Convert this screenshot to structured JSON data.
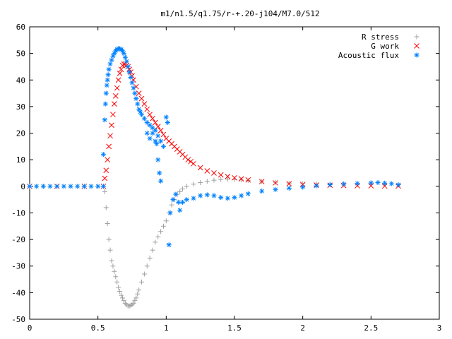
{
  "chart_data": {
    "type": "scatter",
    "title": "m1/n1.5/q1.75/r-+.20-j104/M7.0/512",
    "xlabel": "",
    "ylabel": "",
    "xlim": [
      0,
      3
    ],
    "ylim": [
      -50,
      60
    ],
    "xticks": [
      0,
      0.5,
      1,
      1.5,
      2,
      2.5,
      3
    ],
    "yticks": [
      -50,
      -40,
      -30,
      -20,
      -10,
      0,
      10,
      20,
      30,
      40,
      50,
      60
    ],
    "xtick_labels": [
      "0",
      "0.5",
      "1",
      "1.5",
      "2",
      "2.5",
      "3"
    ],
    "ytick_labels": [
      "-50",
      "-40",
      "-30",
      "-20",
      "-10",
      "0",
      "10",
      "20",
      "30",
      "40",
      "50",
      "60"
    ],
    "grid": false,
    "legend_position": "top-right",
    "series": [
      {
        "name": "R stress",
        "marker": "plus",
        "color": "#a0a0a0",
        "points": [
          [
            0.0,
            0.0
          ],
          [
            0.1,
            0.0
          ],
          [
            0.2,
            0.0
          ],
          [
            0.3,
            0.0
          ],
          [
            0.4,
            0.0
          ],
          [
            0.5,
            0.0
          ],
          [
            0.54,
            0.0
          ],
          [
            0.55,
            -2
          ],
          [
            0.56,
            -8
          ],
          [
            0.57,
            -14
          ],
          [
            0.58,
            -20
          ],
          [
            0.59,
            -24
          ],
          [
            0.6,
            -28
          ],
          [
            0.61,
            -30
          ],
          [
            0.62,
            -32
          ],
          [
            0.63,
            -34
          ],
          [
            0.64,
            -36
          ],
          [
            0.65,
            -38
          ],
          [
            0.66,
            -39.5
          ],
          [
            0.67,
            -41
          ],
          [
            0.68,
            -42
          ],
          [
            0.69,
            -43
          ],
          [
            0.7,
            -44
          ],
          [
            0.71,
            -44.5
          ],
          [
            0.72,
            -45
          ],
          [
            0.73,
            -45
          ],
          [
            0.74,
            -44.8
          ],
          [
            0.75,
            -44.5
          ],
          [
            0.76,
            -44
          ],
          [
            0.77,
            -43
          ],
          [
            0.78,
            -42
          ],
          [
            0.79,
            -40.5
          ],
          [
            0.8,
            -39
          ],
          [
            0.82,
            -36
          ],
          [
            0.84,
            -33
          ],
          [
            0.86,
            -30
          ],
          [
            0.88,
            -27
          ],
          [
            0.9,
            -24
          ],
          [
            0.92,
            -21
          ],
          [
            0.94,
            -19
          ],
          [
            0.96,
            -17
          ],
          [
            0.98,
            -15
          ],
          [
            1.0,
            -13
          ],
          [
            1.02,
            -10
          ],
          [
            1.04,
            -7
          ],
          [
            1.06,
            -5
          ],
          [
            1.08,
            -3
          ],
          [
            1.1,
            -2
          ],
          [
            1.12,
            -1
          ],
          [
            1.15,
            0
          ],
          [
            1.2,
            0.8
          ],
          [
            1.25,
            1.4
          ],
          [
            1.3,
            1.9
          ],
          [
            1.35,
            2.3
          ],
          [
            1.4,
            2.6
          ],
          [
            1.45,
            2.7
          ],
          [
            1.5,
            2.6
          ],
          [
            1.55,
            2.4
          ],
          [
            1.6,
            2.2
          ],
          [
            1.7,
            1.8
          ],
          [
            1.8,
            1.5
          ],
          [
            1.9,
            1.2
          ],
          [
            2.0,
            1.0
          ],
          [
            2.1,
            0.9
          ],
          [
            2.2,
            0.8
          ],
          [
            2.3,
            0.8
          ],
          [
            2.4,
            0.8
          ],
          [
            2.5,
            0.8
          ],
          [
            2.6,
            0.7
          ],
          [
            2.7,
            0.6
          ]
        ]
      },
      {
        "name": "G work",
        "marker": "cross",
        "color": "#ff0000",
        "points": [
          [
            0.0,
            0.0
          ],
          [
            0.2,
            0.0
          ],
          [
            0.4,
            0.0
          ],
          [
            0.54,
            0.0
          ],
          [
            0.55,
            3
          ],
          [
            0.56,
            6
          ],
          [
            0.57,
            10
          ],
          [
            0.58,
            15
          ],
          [
            0.59,
            19
          ],
          [
            0.6,
            23
          ],
          [
            0.61,
            27
          ],
          [
            0.62,
            31
          ],
          [
            0.63,
            34
          ],
          [
            0.64,
            37
          ],
          [
            0.65,
            40
          ],
          [
            0.66,
            42.5
          ],
          [
            0.67,
            44
          ],
          [
            0.68,
            45.5
          ],
          [
            0.69,
            46
          ],
          [
            0.7,
            46
          ],
          [
            0.71,
            45.5
          ],
          [
            0.72,
            45
          ],
          [
            0.73,
            44
          ],
          [
            0.74,
            43
          ],
          [
            0.75,
            41.5
          ],
          [
            0.76,
            40
          ],
          [
            0.78,
            37.5
          ],
          [
            0.8,
            35
          ],
          [
            0.82,
            33
          ],
          [
            0.84,
            31
          ],
          [
            0.86,
            29
          ],
          [
            0.88,
            27
          ],
          [
            0.9,
            25.5
          ],
          [
            0.92,
            24
          ],
          [
            0.94,
            22.5
          ],
          [
            0.96,
            21
          ],
          [
            0.98,
            19.5
          ],
          [
            1.0,
            18
          ],
          [
            1.02,
            17
          ],
          [
            1.04,
            16
          ],
          [
            1.06,
            15
          ],
          [
            1.08,
            14
          ],
          [
            1.1,
            13
          ],
          [
            1.12,
            12
          ],
          [
            1.14,
            11
          ],
          [
            1.16,
            10
          ],
          [
            1.18,
            9.3
          ],
          [
            1.2,
            8.5
          ],
          [
            1.25,
            7
          ],
          [
            1.3,
            5.8
          ],
          [
            1.35,
            5
          ],
          [
            1.4,
            4.3
          ],
          [
            1.45,
            3.7
          ],
          [
            1.5,
            3.2
          ],
          [
            1.55,
            2.8
          ],
          [
            1.6,
            2.4
          ],
          [
            1.7,
            1.8
          ],
          [
            1.8,
            1.3
          ],
          [
            1.9,
            1.0
          ],
          [
            2.0,
            0.7
          ],
          [
            2.1,
            0.5
          ],
          [
            2.2,
            0.4
          ],
          [
            2.3,
            0.3
          ],
          [
            2.4,
            0.2
          ],
          [
            2.5,
            0.2
          ],
          [
            2.6,
            0.1
          ],
          [
            2.7,
            0.1
          ]
        ]
      },
      {
        "name": "Acoustic flux",
        "marker": "star",
        "color": "#0080ff",
        "points": [
          [
            0.0,
            0.0
          ],
          [
            0.05,
            0.0
          ],
          [
            0.1,
            0.0
          ],
          [
            0.15,
            0.0
          ],
          [
            0.2,
            0.0
          ],
          [
            0.25,
            0.0
          ],
          [
            0.3,
            0.0
          ],
          [
            0.35,
            0.0
          ],
          [
            0.4,
            0.0
          ],
          [
            0.45,
            0.0
          ],
          [
            0.5,
            0.0
          ],
          [
            0.54,
            0.0
          ],
          [
            0.54,
            12
          ],
          [
            0.55,
            25
          ],
          [
            0.555,
            31
          ],
          [
            0.56,
            35
          ],
          [
            0.565,
            38
          ],
          [
            0.57,
            40
          ],
          [
            0.575,
            42
          ],
          [
            0.58,
            44
          ],
          [
            0.59,
            46
          ],
          [
            0.6,
            47.5
          ],
          [
            0.61,
            49
          ],
          [
            0.62,
            50
          ],
          [
            0.63,
            51
          ],
          [
            0.64,
            51.5
          ],
          [
            0.65,
            51.8
          ],
          [
            0.66,
            51.8
          ],
          [
            0.67,
            51.5
          ],
          [
            0.68,
            51
          ],
          [
            0.69,
            50
          ],
          [
            0.7,
            48.5
          ],
          [
            0.71,
            47
          ],
          [
            0.72,
            45
          ],
          [
            0.73,
            43
          ],
          [
            0.74,
            41
          ],
          [
            0.75,
            39
          ],
          [
            0.76,
            37
          ],
          [
            0.77,
            35
          ],
          [
            0.78,
            33
          ],
          [
            0.79,
            31
          ],
          [
            0.8,
            29
          ],
          [
            0.81,
            28
          ],
          [
            0.82,
            27
          ],
          [
            0.84,
            25.5
          ],
          [
            0.86,
            24
          ],
          [
            0.88,
            23
          ],
          [
            0.9,
            22
          ],
          [
            0.92,
            21
          ],
          [
            0.94,
            19
          ],
          [
            0.96,
            17
          ],
          [
            0.98,
            15
          ],
          [
            0.86,
            20
          ],
          [
            0.88,
            18
          ],
          [
            0.9,
            20
          ],
          [
            0.92,
            17
          ],
          [
            0.93,
            16
          ],
          [
            0.94,
            10
          ],
          [
            0.95,
            5
          ],
          [
            0.96,
            2
          ],
          [
            1.0,
            26
          ],
          [
            1.01,
            24
          ],
          [
            1.02,
            -22
          ],
          [
            1.03,
            -10
          ],
          [
            1.05,
            -5
          ],
          [
            1.07,
            -3
          ],
          [
            1.09,
            -6
          ],
          [
            1.1,
            -9
          ],
          [
            1.12,
            -6
          ],
          [
            1.15,
            -5
          ],
          [
            1.2,
            -4.5
          ],
          [
            1.25,
            -3.5
          ],
          [
            1.3,
            -3.2
          ],
          [
            1.35,
            -3.5
          ],
          [
            1.4,
            -4.2
          ],
          [
            1.45,
            -4.5
          ],
          [
            1.5,
            -4.2
          ],
          [
            1.55,
            -3.5
          ],
          [
            1.6,
            -2.8
          ],
          [
            1.7,
            -1.8
          ],
          [
            1.8,
            -1.2
          ],
          [
            1.9,
            -0.7
          ],
          [
            2.0,
            -0.3
          ],
          [
            2.1,
            0.2
          ],
          [
            2.2,
            0.6
          ],
          [
            2.3,
            0.9
          ],
          [
            2.4,
            1.1
          ],
          [
            2.5,
            1.3
          ],
          [
            2.55,
            1.4
          ],
          [
            2.6,
            1.2
          ],
          [
            2.65,
            1.0
          ],
          [
            2.7,
            0.6
          ]
        ]
      }
    ]
  }
}
